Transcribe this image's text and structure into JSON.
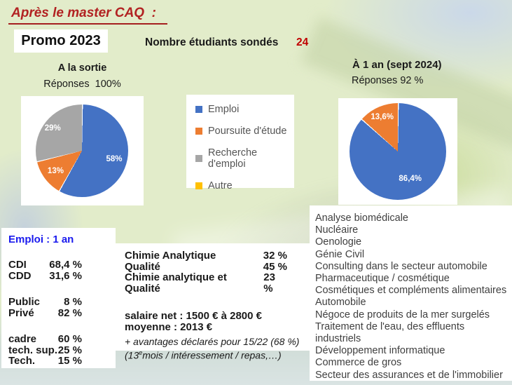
{
  "title": "Après le master CAQ  :",
  "promo_label": "Promo 2023",
  "survey": {
    "label": "Nombre étudiants sondés",
    "value": "24"
  },
  "left_chart": {
    "heading": "A la sortie",
    "subheading": "Réponses  100%"
  },
  "right_chart": {
    "heading": "À 1 an (sept 2024)",
    "subheading": "Réponses 92 %"
  },
  "legend": {
    "items": [
      {
        "label": "Emploi",
        "color": "#4472C4"
      },
      {
        "label": "Poursuite d'étude",
        "color": "#ED7D31"
      },
      {
        "label": "Recherche d'emploi",
        "color": "#A6A6A6"
      },
      {
        "label": "Autre",
        "color": "#FFC000"
      }
    ]
  },
  "chart_data": [
    {
      "type": "pie",
      "title": "A la sortie",
      "subtitle": "Réponses 100%",
      "labels": [
        "Emploi",
        "Poursuite d'étude",
        "Recherche d'emploi",
        "Autre"
      ],
      "values": [
        58,
        13,
        29,
        0
      ],
      "display_labels": [
        "58%",
        "13%",
        "29%",
        ""
      ],
      "colors": [
        "#4472C4",
        "#ED7D31",
        "#A6A6A6",
        "#FFC000"
      ],
      "label_radius": [
        0.72,
        0.72,
        0.8,
        0.7
      ],
      "start_angle_deg": 0,
      "direction": "clockwise",
      "legend_position": "right"
    },
    {
      "type": "pie",
      "title": "À 1 an (sept 2024)",
      "subtitle": "Réponses 92 %",
      "labels": [
        "Emploi",
        "Poursuite d'étude"
      ],
      "values": [
        86.4,
        13.6
      ],
      "display_labels": [
        "86,4%",
        "13,6%"
      ],
      "colors": [
        "#4472C4",
        "#ED7D31"
      ],
      "label_radius": [
        0.62,
        0.78
      ],
      "start_angle_deg": 0,
      "direction": "clockwise"
    }
  ],
  "employment": {
    "heading": "Emploi : 1 an",
    "rows": [
      {
        "label": "CDI",
        "value": "68,4 %"
      },
      {
        "label": "CDD",
        "value": "31,6 %"
      },
      {
        "label": "Public",
        "value": "8 %"
      },
      {
        "label": "Privé",
        "value": "82 %"
      },
      {
        "label": "cadre",
        "value": "60 %"
      },
      {
        "label": "tech. sup.",
        "value": "25 %"
      },
      {
        "label": "Tech.",
        "value": "15 %"
      }
    ]
  },
  "fields": {
    "rows": [
      {
        "label": "Chimie Analytique",
        "value": "32 %"
      },
      {
        "label": "Qualité",
        "value": "45 %"
      },
      {
        "label": "Chimie analytique et Qualité",
        "value": "23 %"
      }
    ],
    "salary_line1": "salaire net : 1500 € à 2800 €",
    "salary_line2": "moyenne : 2013 €",
    "note_line1": "+ avantages déclarés pour 15/22 (68 %)",
    "note_line2_pre": "(13",
    "note_line2_sup": "e",
    "note_line2_post": "mois / intéressement / repas,…)"
  },
  "sectors": {
    "items": [
      "Analyse biomédicale",
      "Nucléaire",
      "Oenologie",
      "Génie Civil",
      "Consulting dans le secteur automobile",
      "Pharmaceutique / cosmétique",
      "Cosmétiques et compléments alimentaires",
      "Automobile",
      "Négoce de produits de la mer surgelés",
      "Traitement de l'eau, des effluents industriels",
      "Développement informatique",
      "Commerce de gros",
      "Secteur des assurances et de l'immobilier"
    ]
  },
  "colors": {
    "accent_red": "#b22222",
    "value_red": "#c00000",
    "pie_blue": "#4472C4",
    "pie_orange": "#ED7D31",
    "pie_gray": "#A6A6A6",
    "pie_yellow": "#FFC000",
    "employment_heading_blue": "#1a1aee"
  }
}
